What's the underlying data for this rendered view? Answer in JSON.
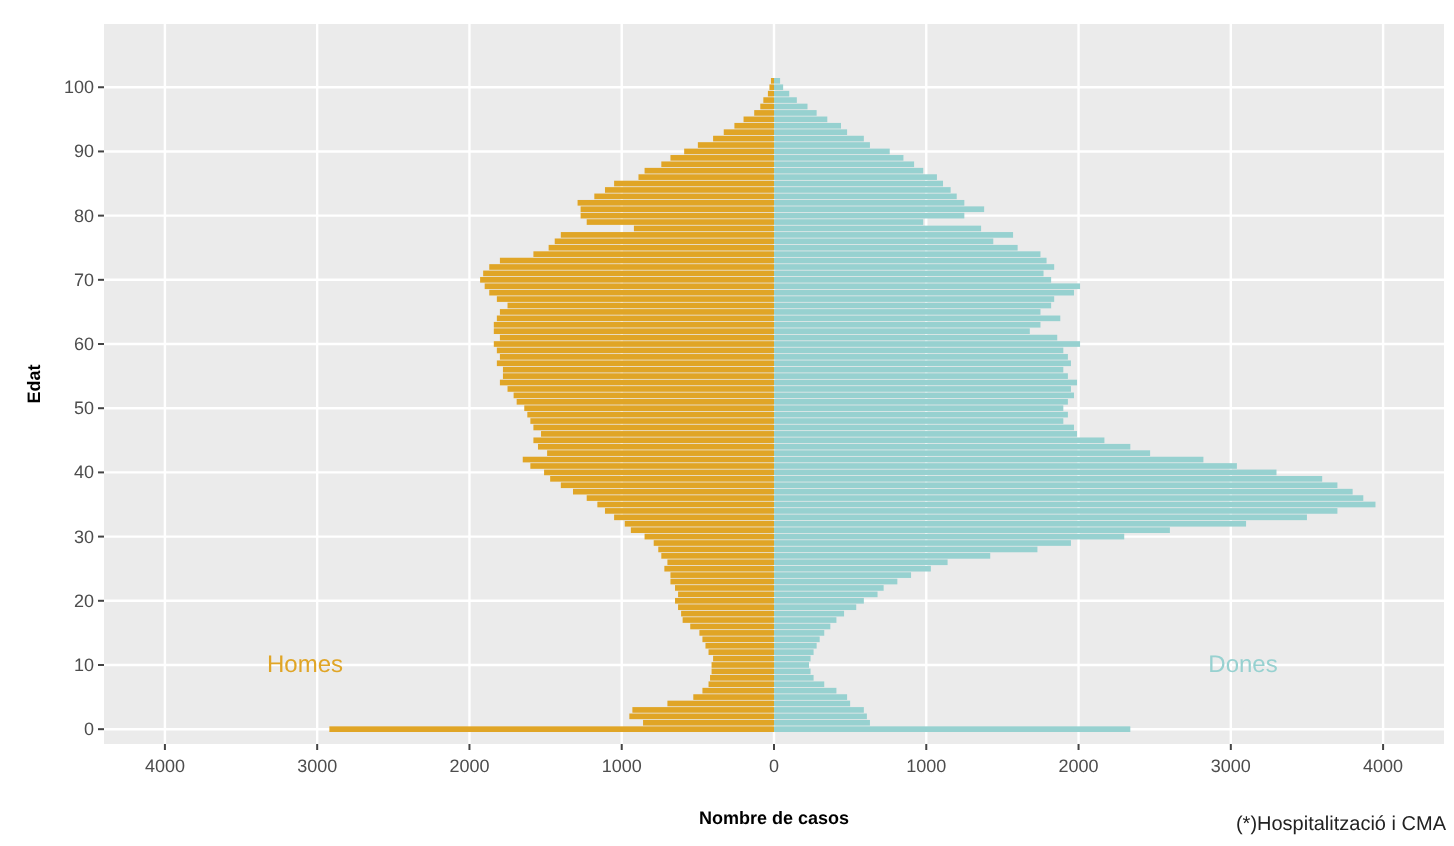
{
  "chart_data": {
    "type": "bar",
    "orientation": "horizontal",
    "stacked": true,
    "ylabel": "Edat",
    "xlabel": "Nombre de casos",
    "grid": true,
    "annotations": [
      "(*)Hospitalització i CMA"
    ],
    "xlim": [
      -4400,
      4400
    ],
    "xticks": [
      {
        "value": -4000,
        "label": "4000"
      },
      {
        "value": -3000,
        "label": "3000"
      },
      {
        "value": -2000,
        "label": "2000"
      },
      {
        "value": -1000,
        "label": "1000"
      },
      0,
      1000,
      2000,
      3000,
      4000
    ],
    "categories": [
      null,
      "100",
      null,
      null,
      null,
      null,
      null,
      null,
      null,
      null,
      null,
      "90",
      null,
      null,
      null,
      null,
      null,
      null,
      null,
      null,
      null,
      "80",
      null,
      null,
      null,
      null,
      null,
      null,
      null,
      null,
      null,
      "70",
      null,
      null,
      null,
      null,
      null,
      null,
      null,
      null,
      null,
      "60",
      null,
      null,
      null,
      null,
      null,
      null,
      null,
      null,
      null,
      "50",
      null,
      null,
      null,
      null,
      null,
      null,
      null,
      null,
      null,
      "40",
      null,
      null,
      null,
      null,
      null,
      null,
      null,
      null,
      null,
      "30",
      null,
      null,
      null,
      null,
      null,
      null,
      null,
      null,
      null,
      "20",
      null,
      null,
      null,
      null,
      null,
      null,
      null,
      null,
      null,
      "10",
      null,
      null,
      null,
      null,
      null,
      null,
      null,
      null,
      null,
      "0"
    ],
    "series": [
      {
        "name": "Homes",
        "color": "#e0a526",
        "values": [
          -20,
          -30,
          -40,
          -70,
          -90,
          -130,
          -200,
          -260,
          -330,
          -400,
          -500,
          -590,
          -680,
          -740,
          -850,
          -890,
          -1050,
          -1110,
          -1180,
          -1290,
          -1270,
          -1270,
          -1230,
          -920,
          -1400,
          -1440,
          -1480,
          -1580,
          -1800,
          -1870,
          -1910,
          -1930,
          -1900,
          -1870,
          -1820,
          -1750,
          -1800,
          -1820,
          -1840,
          -1840,
          -1800,
          -1840,
          -1820,
          -1800,
          -1820,
          -1780,
          -1780,
          -1800,
          -1750,
          -1710,
          -1690,
          -1640,
          -1620,
          -1600,
          -1580,
          -1530,
          -1580,
          -1550,
          -1490,
          -1650,
          -1600,
          -1510,
          -1470,
          -1400,
          -1320,
          -1230,
          -1160,
          -1110,
          -1050,
          -980,
          -940,
          -850,
          -790,
          -760,
          -740,
          -700,
          -720,
          -680,
          -680,
          -650,
          -630,
          -650,
          -630,
          -610,
          -600,
          -550,
          -490,
          -470,
          -450,
          -430,
          -400,
          -410,
          -410,
          -420,
          -430,
          -470,
          -530,
          -700,
          -930,
          -950,
          -860,
          -2920
        ]
      },
      {
        "name": "Dones",
        "color": "#97d1d0",
        "values": [
          40,
          60,
          100,
          150,
          220,
          280,
          350,
          440,
          480,
          590,
          630,
          760,
          850,
          920,
          980,
          1070,
          1110,
          1160,
          1200,
          1250,
          1380,
          1250,
          980,
          1360,
          1570,
          1440,
          1600,
          1750,
          1790,
          1840,
          1770,
          1820,
          2010,
          1970,
          1840,
          1820,
          1750,
          1880,
          1750,
          1680,
          1860,
          2010,
          1900,
          1930,
          1950,
          1900,
          1930,
          1990,
          1950,
          1970,
          1930,
          1900,
          1930,
          1900,
          1970,
          1990,
          2170,
          2340,
          2470,
          2820,
          3040,
          3300,
          3600,
          3700,
          3800,
          3870,
          3950,
          3700,
          3500,
          3100,
          2600,
          2300,
          1950,
          1730,
          1420,
          1140,
          1030,
          900,
          810,
          720,
          680,
          590,
          540,
          460,
          410,
          370,
          330,
          300,
          280,
          260,
          240,
          230,
          240,
          260,
          330,
          410,
          480,
          500,
          590,
          610,
          630,
          2340
        ]
      }
    ]
  }
}
